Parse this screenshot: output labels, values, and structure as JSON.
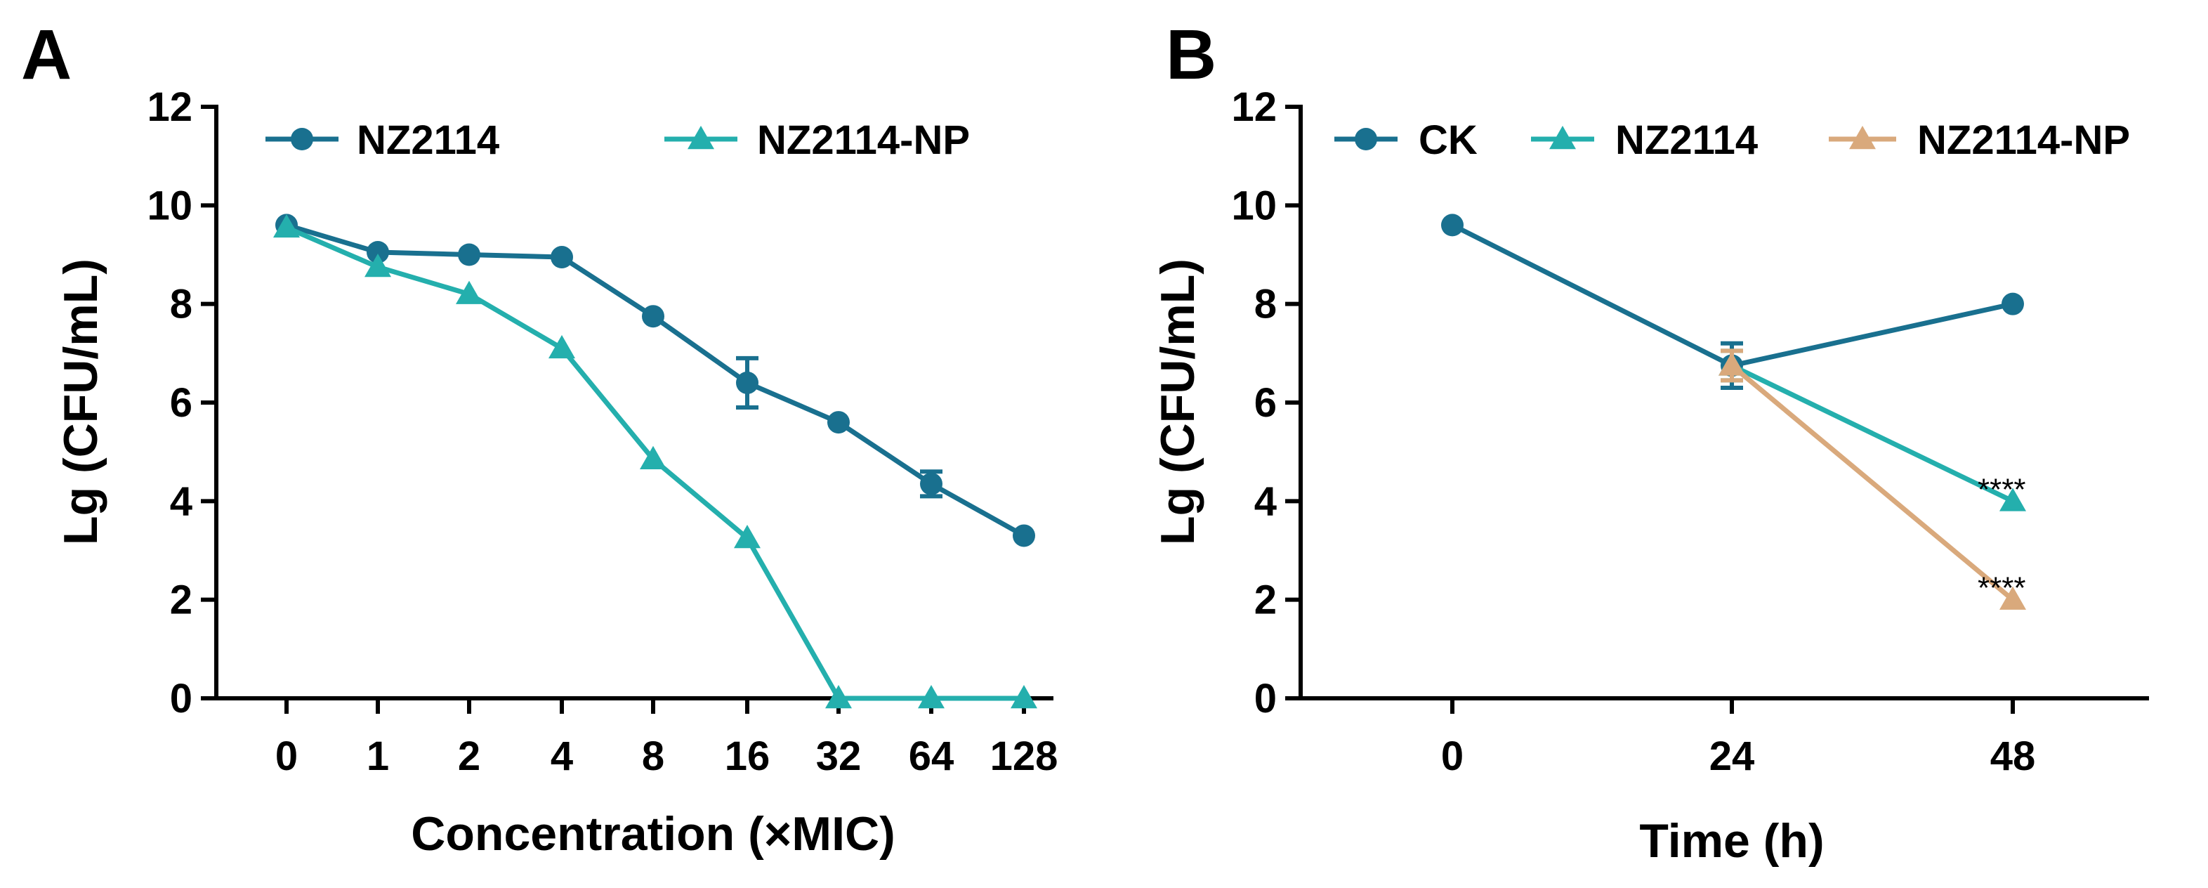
{
  "colors": {
    "NZ2114": "#19708F",
    "NZ2114-NP": "#24AFAD",
    "CK": "#19708F",
    "NZ2114_B": "#24AFAD",
    "NZ2114-NP_B": "#D9A97C"
  },
  "chart_data": [
    {
      "panel": "A",
      "type": "line",
      "categories": [
        "0",
        "1",
        "2",
        "4",
        "8",
        "16",
        "32",
        "64",
        "128"
      ],
      "xlabel": "Concentration (×MIC)",
      "ylabel": "Lg (CFU/mL)",
      "ylim": [
        0,
        12
      ],
      "yticks": [
        "0",
        "2",
        "4",
        "6",
        "8",
        "10",
        "12"
      ],
      "legend_position": "top",
      "series": [
        {
          "name": "NZ2114",
          "marker": "circle",
          "color": "#19708F",
          "values": [
            9.6,
            9.05,
            9.0,
            8.95,
            7.75,
            6.4,
            5.6,
            4.35,
            3.3
          ],
          "errors": [
            0.08,
            0.08,
            0.1,
            0.08,
            0.08,
            0.5,
            0.08,
            0.25,
            0.08
          ]
        },
        {
          "name": "NZ2114-NP",
          "marker": "triangle",
          "color": "#24AFAD",
          "values": [
            9.55,
            8.75,
            8.2,
            7.1,
            4.85,
            3.25,
            0.0,
            0.0,
            0.0
          ],
          "errors": [
            0.08,
            0.1,
            0.12,
            0.12,
            0.12,
            0.08,
            0.0,
            0.0,
            0.0
          ]
        }
      ],
      "annotations": []
    },
    {
      "panel": "B",
      "type": "line",
      "categories": [
        "0",
        "24",
        "48"
      ],
      "xlabel": "Time (h)",
      "ylabel": "Lg (CFU/mL)",
      "ylim": [
        0,
        12
      ],
      "yticks": [
        "0",
        "2",
        "4",
        "6",
        "8",
        "10",
        "12"
      ],
      "legend_position": "top",
      "series": [
        {
          "name": "CK",
          "marker": "circle",
          "color": "#19708F",
          "values": [
            9.6,
            6.75,
            8.0
          ],
          "errors": [
            0.08,
            0.45,
            0.12
          ]
        },
        {
          "name": "NZ2114",
          "marker": "triangle",
          "color": "#24AFAD",
          "values": [
            9.6,
            6.75,
            4.0
          ],
          "errors": [
            0.08,
            0.3,
            0.1
          ]
        },
        {
          "name": "NZ2114-NP",
          "marker": "triangle",
          "color": "#D9A97C",
          "values": [
            9.6,
            6.75,
            2.0
          ],
          "errors": [
            0.08,
            0.3,
            0.1
          ]
        }
      ],
      "annotations": [
        {
          "series": "NZ2114",
          "category": "48",
          "text": "****"
        },
        {
          "series": "NZ2114-NP",
          "category": "48",
          "text": "****"
        }
      ]
    }
  ]
}
